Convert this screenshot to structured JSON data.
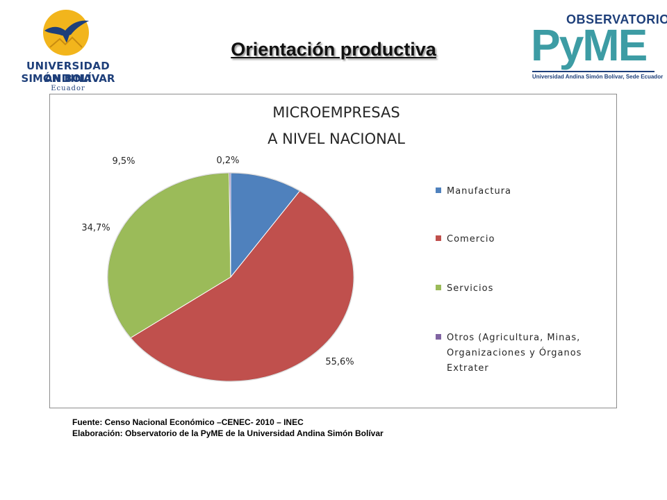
{
  "header": {
    "title": "Orientación productiva",
    "university_logo": {
      "line1": "UNIVERSIDAD ANDINA",
      "line2": "SIMÓN BOLÍVAR",
      "line3": "Ecuador"
    },
    "observatorio_logo": {
      "top": "OBSERVATORIO",
      "main": "PyME",
      "sub": "Universidad Andina Simón Bolívar, Sede Ecuador"
    }
  },
  "chart_data": {
    "type": "pie",
    "title": "MICROEMPRESAS A NIVEL NACIONAL",
    "title_lines": [
      "MICROEMPRESAS",
      "A NIVEL NACIONAL"
    ],
    "categories": [
      "Manufactura",
      "Comercio",
      "Servicios",
      "Otros (Agricultura, Minas, Organizaciones y Órganos Extrater"
    ],
    "legend_lines": [
      [
        "Manufactura"
      ],
      [
        "Comercio"
      ],
      [
        "Servicios"
      ],
      [
        "Otros (Agricultura, Minas,",
        "Organizaciones y Órganos",
        "Extrater"
      ]
    ],
    "values": [
      9.5,
      55.6,
      34.7,
      0.2
    ],
    "labels": [
      "9,5%",
      "55,6%",
      "34,7%",
      "0,2%"
    ],
    "colors": [
      "#4f81bd",
      "#c0504d",
      "#9bbb59",
      "#8064a2"
    ],
    "legend_position": "right"
  },
  "footer": {
    "source": "Fuente: Censo Nacional Económico –CENEC- 2010 – INEC",
    "credit": "Elaboración: Observatorio de la PyME de la Universidad Andina Simón Bolívar"
  }
}
